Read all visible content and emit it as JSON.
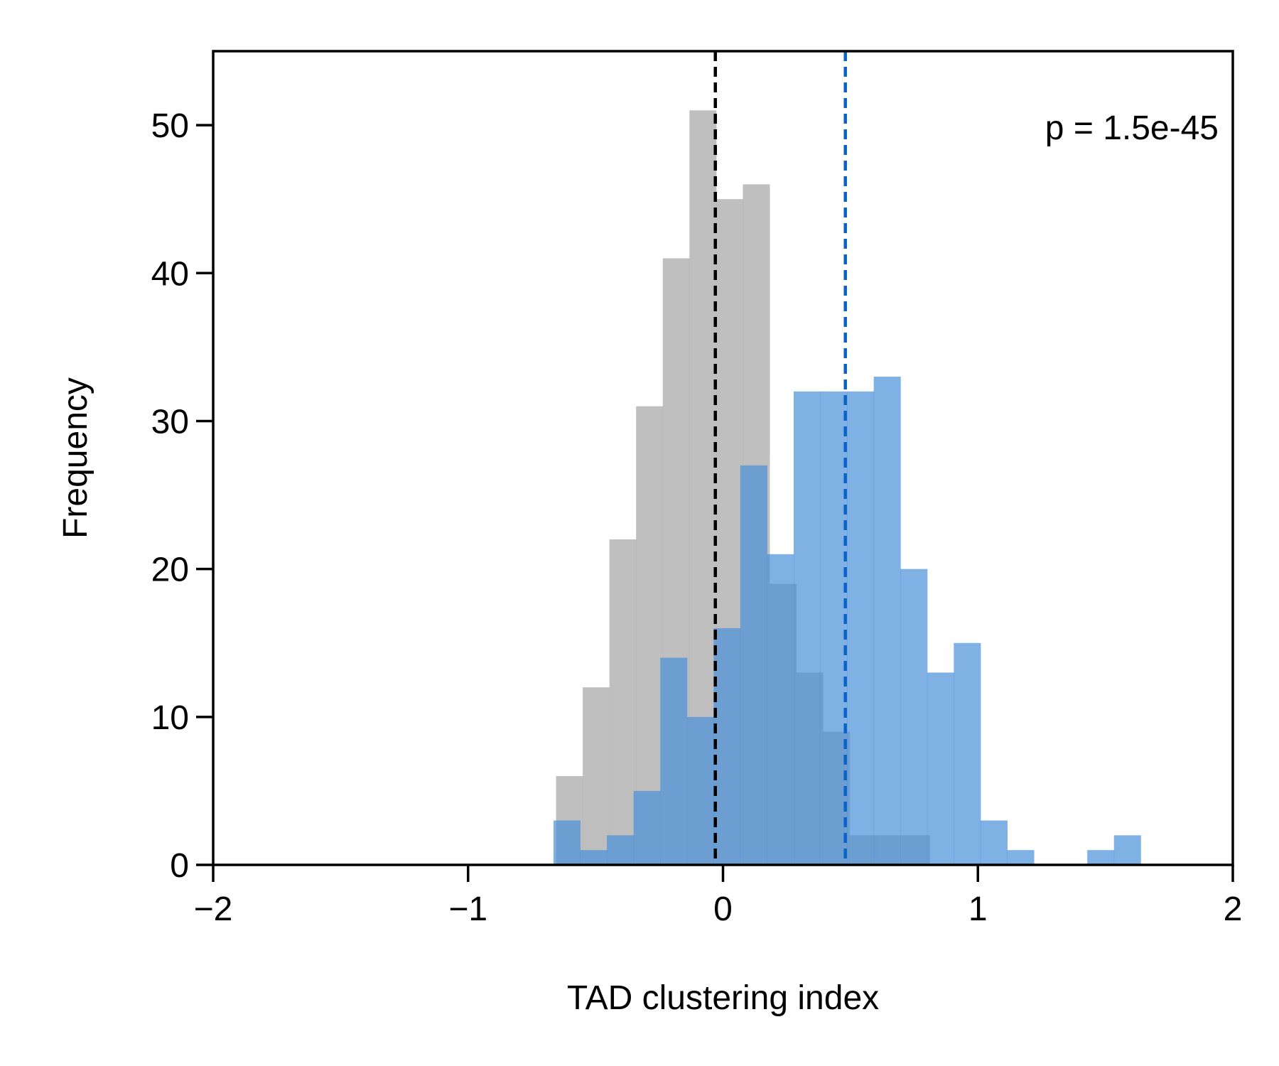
{
  "chart_data": {
    "type": "histogram",
    "xlabel": "TAD clustering index",
    "ylabel": "Frequency",
    "xlim": [
      -2,
      2
    ],
    "ylim": [
      0,
      55
    ],
    "x_ticks": [
      -2,
      -1,
      0,
      1,
      2
    ],
    "x_tick_labels": [
      "−2",
      "−1",
      "0",
      "1",
      "2"
    ],
    "y_ticks": [
      0,
      10,
      20,
      30,
      40,
      50
    ],
    "y_tick_labels": [
      "0",
      "10",
      "20",
      "30",
      "40",
      "50"
    ],
    "grid": false,
    "annotation": "p = 1.5e-45",
    "series": [
      {
        "color": "#b4b4b4",
        "opacity": 0.85,
        "bin_start": -0.655,
        "bin_width": 0.1047,
        "counts": [
          6,
          12,
          22,
          31,
          41,
          51,
          45,
          46,
          19,
          13,
          9,
          2,
          2,
          2
        ],
        "mean_line": -0.03,
        "mean_line_color": "#000000"
      },
      {
        "color": "#4a90d9",
        "opacity": 0.7,
        "bin_start": -0.665,
        "bin_width": 0.1047,
        "counts": [
          3,
          1,
          2,
          5,
          14,
          10,
          16,
          27,
          21,
          32,
          32,
          32,
          33,
          20,
          13,
          15,
          3,
          1,
          0,
          0,
          1,
          2
        ],
        "mean_line": 0.48,
        "mean_line_color": "#0a64c8"
      }
    ]
  }
}
